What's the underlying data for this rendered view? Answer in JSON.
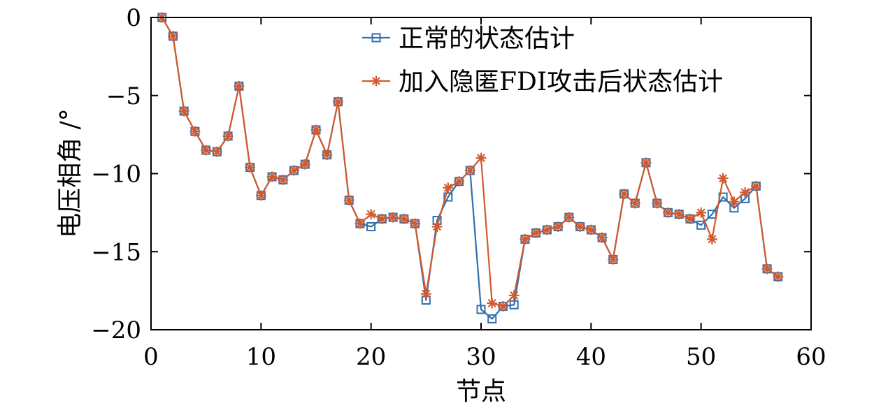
{
  "chart_data": {
    "type": "line",
    "title": "",
    "xlabel": "节点",
    "ylabel": "电压相角 /°",
    "xlim": [
      0,
      60
    ],
    "ylim": [
      -20,
      0
    ],
    "x_ticks": [
      0,
      10,
      20,
      30,
      40,
      50,
      60
    ],
    "y_ticks": [
      0,
      -5,
      -10,
      -15,
      -20
    ],
    "x_tick_labels": [
      "0",
      "10",
      "20",
      "30",
      "40",
      "50",
      "60"
    ],
    "y_tick_labels": [
      "0",
      "−5",
      "−10",
      "−15",
      "−20"
    ],
    "grid": false,
    "legend_position": "top-right",
    "x": [
      1,
      2,
      3,
      4,
      5,
      6,
      7,
      8,
      9,
      10,
      11,
      12,
      13,
      14,
      15,
      16,
      17,
      18,
      19,
      20,
      21,
      22,
      23,
      24,
      25,
      26,
      27,
      28,
      29,
      30,
      31,
      32,
      33,
      34,
      35,
      36,
      37,
      38,
      39,
      40,
      41,
      42,
      43,
      44,
      45,
      46,
      47,
      48,
      49,
      50,
      51,
      52,
      53,
      54,
      55,
      56,
      57
    ],
    "series": [
      {
        "name": "正常的状态估计",
        "color": "#2e6fb0",
        "marker": "square",
        "values": [
          0,
          -1.2,
          -6.0,
          -7.3,
          -8.5,
          -8.6,
          -7.6,
          -4.4,
          -9.6,
          -11.4,
          -10.2,
          -10.4,
          -9.8,
          -9.4,
          -7.2,
          -8.8,
          -5.4,
          -11.7,
          -13.2,
          -13.4,
          -12.9,
          -12.8,
          -12.9,
          -13.2,
          -18.1,
          -13.0,
          -11.5,
          -10.5,
          -9.8,
          -18.7,
          -19.3,
          -18.5,
          -18.4,
          -14.2,
          -13.8,
          -13.6,
          -13.4,
          -12.8,
          -13.4,
          -13.6,
          -14.1,
          -15.5,
          -11.3,
          -11.9,
          -9.3,
          -11.9,
          -12.5,
          -12.6,
          -12.9,
          -13.3,
          -12.6,
          -11.5,
          -12.2,
          -11.6,
          -10.8,
          -16.1,
          -16.6
        ]
      },
      {
        "name": "加入隐匿FDI攻击后状态估计",
        "color": "#d15a2f",
        "marker": "asterisk",
        "values": [
          0,
          -1.2,
          -6.0,
          -7.3,
          -8.5,
          -8.6,
          -7.6,
          -4.4,
          -9.6,
          -11.4,
          -10.2,
          -10.4,
          -9.8,
          -9.4,
          -7.2,
          -8.8,
          -5.4,
          -11.7,
          -13.2,
          -12.6,
          -12.9,
          -12.8,
          -12.9,
          -13.2,
          -17.7,
          -13.4,
          -10.9,
          -10.5,
          -9.8,
          -9.0,
          -18.3,
          -18.5,
          -17.8,
          -14.2,
          -13.8,
          -13.6,
          -13.4,
          -12.8,
          -13.4,
          -13.6,
          -14.1,
          -15.5,
          -11.3,
          -11.9,
          -9.3,
          -11.9,
          -12.5,
          -12.6,
          -12.9,
          -12.5,
          -14.2,
          -10.3,
          -11.8,
          -11.2,
          -10.8,
          -16.1,
          -16.6
        ]
      }
    ]
  }
}
